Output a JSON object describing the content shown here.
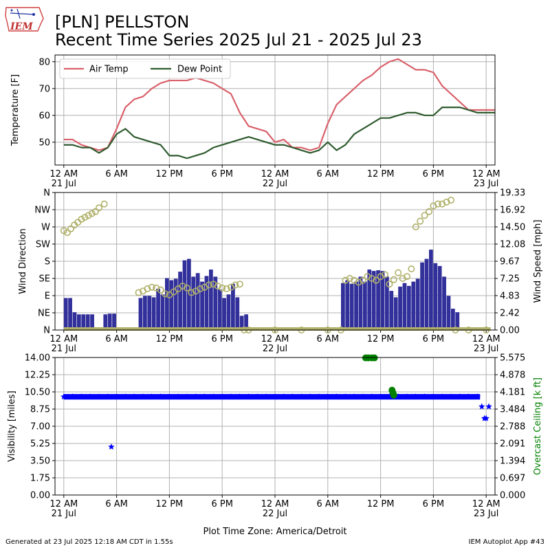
{
  "header": {
    "title_line1": "[PLN] PELLSTON",
    "title_line2": "Recent Time Series 2025 Jul 21 - 2025 Jul 23",
    "logo_text": "IEM"
  },
  "footer": {
    "generated": "Generated at 23 Jul 2025 12:18 AM CDT in 1.55s",
    "app": "IEM Autoplot App #43"
  },
  "colors": {
    "air_temp": "#d9606a",
    "dew_point": "#2e5a2e",
    "wind_bar": "#32309a",
    "wind_circle": "#b0b06a",
    "visibility": "#0000ff",
    "ceiling": "#008000",
    "grid": "#b0b0b0"
  },
  "x_axis": {
    "range_hours": [
      -1,
      49
    ],
    "ticks": [
      {
        "h": 0,
        "line1": "12 AM",
        "line2": "21 Jul"
      },
      {
        "h": 6,
        "line1": "6 AM",
        "line2": ""
      },
      {
        "h": 12,
        "line1": "12 PM",
        "line2": ""
      },
      {
        "h": 18,
        "line1": "6 PM",
        "line2": ""
      },
      {
        "h": 24,
        "line1": "12 AM",
        "line2": "22 Jul"
      },
      {
        "h": 30,
        "line1": "6 AM",
        "line2": ""
      },
      {
        "h": 36,
        "line1": "12 PM",
        "line2": ""
      },
      {
        "h": 42,
        "line1": "6 PM",
        "line2": ""
      },
      {
        "h": 48,
        "line1": "12 AM",
        "line2": "23 Jul"
      }
    ],
    "timezone_label": "Plot Time Zone: America/Detroit"
  },
  "chart_data": [
    {
      "type": "line",
      "ylabel": "Temperature [F]",
      "ylim": [
        41.5,
        82.5
      ],
      "yticks": [
        50,
        60,
        70,
        80
      ],
      "grid": true,
      "legend": "top-left",
      "series": [
        {
          "name": "Air Temp",
          "x": [
            0,
            1,
            2,
            3,
            4,
            5,
            6,
            7,
            8,
            9,
            10,
            11,
            12,
            13,
            14,
            15,
            16,
            17,
            18,
            19,
            20,
            21,
            22,
            23,
            24,
            25,
            26,
            27,
            28,
            29,
            30,
            31,
            32,
            33,
            34,
            35,
            36,
            37,
            38,
            39,
            40,
            41,
            42,
            43,
            44,
            45,
            46,
            47,
            48,
            49
          ],
          "values": [
            51,
            51,
            49,
            48,
            47,
            48,
            55,
            63,
            66,
            67,
            70,
            72,
            73,
            73,
            73,
            74,
            73,
            72,
            70,
            68,
            61,
            56,
            55,
            54,
            50,
            51,
            48,
            48,
            47,
            48,
            57,
            64,
            67,
            70,
            73,
            75,
            78,
            80,
            81,
            79,
            77,
            77,
            76,
            71,
            68,
            65,
            62,
            62,
            62,
            62
          ]
        },
        {
          "name": "Dew Point",
          "x": [
            0,
            1,
            2,
            3,
            4,
            5,
            6,
            7,
            8,
            9,
            10,
            11,
            12,
            13,
            14,
            15,
            16,
            17,
            18,
            19,
            20,
            21,
            22,
            23,
            24,
            25,
            26,
            27,
            28,
            29,
            30,
            31,
            32,
            33,
            34,
            35,
            36,
            37,
            38,
            39,
            40,
            41,
            42,
            43,
            44,
            45,
            46,
            47,
            48,
            49
          ],
          "values": [
            49,
            49,
            48,
            48,
            46,
            48,
            53,
            55,
            52,
            51,
            50,
            49,
            45,
            45,
            44,
            45,
            46,
            48,
            49,
            50,
            51,
            52,
            51,
            50,
            49,
            49,
            48,
            47,
            46,
            47,
            50,
            47,
            49,
            53,
            55,
            57,
            59,
            59,
            60,
            61,
            61,
            60,
            60,
            63,
            63,
            63,
            62,
            61,
            61,
            61
          ]
        }
      ]
    },
    {
      "type": "bar",
      "ylabel": "Wind Direction",
      "y2label": "Wind Speed [mph]",
      "direction_ylim": [
        0,
        360
      ],
      "direction_ticks": [
        "N",
        "NE",
        "E",
        "SE",
        "S",
        "SW",
        "W",
        "NW",
        "N"
      ],
      "speed_ylim": [
        0,
        19.33
      ],
      "speed_ticks": [
        "0.00",
        "2.42",
        "4.83",
        "7.25",
        "9.67",
        "12.08",
        "14.50",
        "16.92",
        "19.33"
      ],
      "grid": true,
      "series": [
        {
          "name": "speed",
          "x": [
            0,
            0.5,
            1,
            1.5,
            2,
            2.5,
            3,
            3.5,
            4,
            4.5,
            5,
            5.5,
            6,
            6.5,
            7,
            7.5,
            8,
            8.5,
            9,
            9.5,
            10,
            10.5,
            11,
            11.5,
            12,
            12.5,
            13,
            13.5,
            14,
            14.5,
            15,
            15.5,
            16,
            16.5,
            17,
            17.5,
            18,
            18.5,
            19,
            19.5,
            20,
            20.5,
            21,
            21.5,
            22,
            22.5,
            23,
            23.5,
            24,
            24.5,
            25,
            25.5,
            26,
            26.5,
            27,
            27.5,
            28,
            28.5,
            29,
            29.5,
            30,
            30.5,
            31,
            31.5,
            32,
            32.5,
            33,
            33.5,
            34,
            34.5,
            35,
            35.5,
            36,
            36.5,
            37,
            37.5,
            38,
            38.5,
            39,
            39.5,
            40,
            40.5,
            41,
            41.5,
            42,
            42.5,
            43,
            43.5,
            44,
            44.5,
            45,
            45.5,
            46,
            46.5,
            47,
            47.5,
            48,
            48.5
          ],
          "values": [
            4.5,
            4.5,
            2.5,
            2.2,
            2.2,
            2.2,
            2.2,
            0,
            0,
            2.2,
            2.3,
            2.3,
            0,
            0,
            0,
            0,
            0,
            4.5,
            4.8,
            4.8,
            4.6,
            5.8,
            5,
            7.3,
            7,
            7.2,
            8.2,
            9.8,
            10,
            7.5,
            8,
            6.8,
            7.6,
            8.5,
            7.5,
            5.7,
            4.5,
            5,
            6.5,
            4.6,
            2,
            2.2,
            0,
            0,
            0,
            0,
            0,
            0,
            0,
            0,
            0,
            0,
            0,
            0,
            0,
            0,
            0,
            0,
            0,
            0,
            0,
            0,
            0,
            6.6,
            7,
            6.5,
            6.8,
            7.5,
            6.8,
            8.5,
            8.3,
            8.4,
            8.3,
            7.5,
            5.5,
            4.6,
            6.1,
            6.6,
            6.2,
            6.8,
            7.2,
            9.5,
            10,
            11.3,
            9.4,
            9,
            7.5,
            4.8,
            3,
            2.5,
            0,
            0,
            0,
            0,
            0,
            0,
            0,
            0
          ]
        },
        {
          "name": "direction",
          "x": [
            0,
            0.4,
            0.8,
            1.2,
            1.6,
            2,
            2.4,
            2.8,
            3.2,
            3.6,
            4,
            4.6,
            8.5,
            9,
            9.5,
            10,
            10.5,
            11,
            11.5,
            12,
            12.5,
            13,
            13.5,
            14,
            14.5,
            15,
            15.5,
            16,
            16.5,
            17,
            17.5,
            18,
            18.5,
            19,
            19.5,
            20,
            20.5,
            21,
            24,
            27,
            30,
            31.5,
            32,
            32.5,
            33,
            33.5,
            34,
            34.5,
            35,
            35.5,
            36,
            36.5,
            37,
            37.5,
            38,
            38.5,
            39,
            39.5,
            40,
            40.5,
            41,
            41.5,
            42,
            42.5,
            43,
            43.5,
            44,
            44.5,
            46,
            48
          ],
          "values": [
            260,
            255,
            265,
            275,
            282,
            290,
            295,
            300,
            305,
            310,
            320,
            330,
            98,
            102,
            108,
            112,
            110,
            105,
            95,
            92,
            100,
            108,
            115,
            110,
            98,
            102,
            108,
            112,
            118,
            120,
            115,
            110,
            108,
            112,
            118,
            120,
            0,
            0,
            0,
            0,
            0,
            0,
            130,
            135,
            130,
            125,
            130,
            140,
            135,
            130,
            140,
            145,
            120,
            132,
            150,
            135,
            140,
            160,
            270,
            285,
            300,
            310,
            325,
            330,
            330,
            335,
            340,
            0,
            0,
            0
          ]
        }
      ]
    },
    {
      "type": "scatter",
      "ylabel": "Visibility [miles]",
      "y2label": "Overcast Ceiling [k ft]",
      "vis_ylim": [
        0,
        14
      ],
      "vis_ticks": [
        "0.00",
        "1.75",
        "3.50",
        "5.25",
        "7.00",
        "8.75",
        "10.50",
        "12.25",
        "14.00"
      ],
      "ceiling_ylim": [
        0,
        5.575
      ],
      "ceiling_ticks": [
        "0.000",
        "0.697",
        "1.394",
        "2.091",
        "2.788",
        "3.484",
        "4.181",
        "4.878",
        "5.575"
      ],
      "grid": true,
      "series": [
        {
          "name": "visibility",
          "x": [
            0,
            1,
            2,
            3,
            4,
            5,
            5.4,
            6,
            7,
            8,
            9,
            10,
            11,
            12,
            13,
            14,
            15,
            16,
            17,
            18,
            19,
            20,
            21,
            22,
            23,
            24,
            25,
            26,
            27,
            28,
            29,
            30,
            31,
            32,
            33,
            34,
            35,
            36,
            37,
            38,
            39,
            40,
            41,
            42,
            43,
            44,
            45,
            46,
            47,
            47.5,
            47.8,
            48,
            48.3
          ],
          "values": [
            10,
            10,
            10,
            10,
            10,
            10,
            4.9,
            10,
            10,
            10,
            10,
            10,
            10,
            10,
            10,
            10,
            10,
            10,
            10,
            10,
            10,
            10,
            10,
            10,
            10,
            10,
            10,
            10,
            10,
            10,
            10,
            10,
            10,
            10,
            10,
            10,
            10,
            10,
            10,
            10,
            10,
            10,
            10,
            10,
            10,
            10,
            10,
            10,
            10,
            9,
            7.8,
            7.8,
            9
          ]
        },
        {
          "name": "ceiling",
          "x": [
            34.3,
            34.6,
            35,
            35.3,
            37.3,
            37.4,
            37.5
          ],
          "values": [
            5.56,
            5.56,
            5.56,
            5.56,
            4.25,
            4.15,
            4.05
          ]
        }
      ]
    }
  ]
}
